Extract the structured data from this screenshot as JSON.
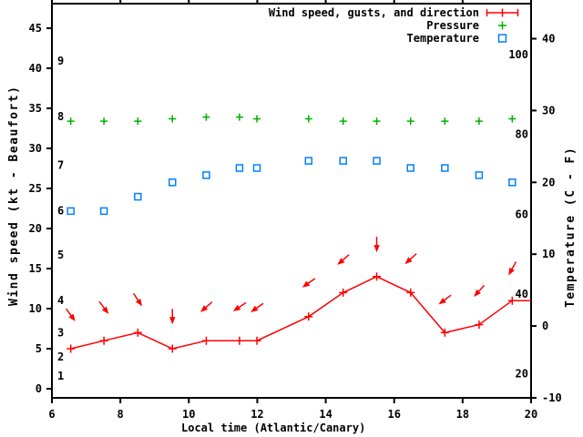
{
  "legend": {
    "items": [
      {
        "label": "Wind speed, gusts, and direction",
        "series": "wind"
      },
      {
        "label": "Pressure",
        "series": "pressure"
      },
      {
        "label": "Temperature",
        "series": "temperature"
      }
    ]
  },
  "colors": {
    "wind": "#ff0000",
    "pressure": "#00b000",
    "temperature": "#0080ff",
    "axis": "#000000",
    "background": "#ffffff"
  },
  "chart_data": {
    "type": "line",
    "title": "",
    "xlabel": "Local time (Atlantic/Canary)",
    "ylabel": "Wind speed (kt - Beaufort)",
    "y2label": "Temperature (C - F)",
    "x_range": [
      6,
      20
    ],
    "x_ticks": [
      6,
      8,
      10,
      12,
      14,
      16,
      18,
      20
    ],
    "y_left_ticks_kt": [
      0,
      5,
      10,
      15,
      20,
      25,
      30,
      35,
      40,
      45
    ],
    "y_right_ticks_c": [
      -10,
      0,
      10,
      20,
      30,
      40
    ],
    "fahrenheit_inner_labels": [
      20,
      40,
      60,
      80,
      100
    ],
    "beaufort_inner_labels": [
      {
        "label": "1",
        "kt": 1.6
      },
      {
        "label": "2",
        "kt": 4
      },
      {
        "label": "3",
        "kt": 7
      },
      {
        "label": "4",
        "kt": 11
      },
      {
        "label": "5",
        "kt": 16.7
      },
      {
        "label": "6",
        "kt": 22.2
      },
      {
        "label": "7",
        "kt": 27.9
      },
      {
        "label": "8",
        "kt": 34
      },
      {
        "label": "9",
        "kt": 40.9
      }
    ],
    "grid": false,
    "legend_position": "top-right-inside",
    "x": [
      6.55,
      7.52,
      8.51,
      9.52,
      10.51,
      11.48,
      11.99,
      13.5,
      14.51,
      15.49,
      16.48,
      17.48,
      18.48,
      19.45
    ],
    "series": [
      {
        "name": "Wind speed (kt)",
        "color_key": "wind",
        "values": [
          5,
          6,
          7,
          5,
          6,
          6,
          6,
          9,
          12,
          14,
          12,
          7,
          8,
          11
        ]
      },
      {
        "name": "Wind gusts (kt, arrow centers)",
        "color_key": "wind",
        "values": [
          9.2,
          10.1,
          11.1,
          9,
          10.2,
          10.2,
          10.1,
          13.2,
          16.1,
          18,
          16.2,
          11.1,
          12.2,
          15
        ]
      },
      {
        "name": "Wind direction arrows (degrees clockwise from screen-east, pointing)",
        "color_key": "wind",
        "values": [
          54,
          53,
          56,
          90,
          139,
          146,
          145,
          145,
          139,
          90,
          138,
          143,
          132,
          119
        ]
      },
      {
        "name": "Pressure (plotted height in left-axis kt units, numeric scale not shown)",
        "color_key": "pressure",
        "values": [
          33.4,
          33.4,
          33.4,
          33.7,
          33.9,
          33.9,
          33.7,
          33.7,
          33.4,
          33.4,
          33.4,
          33.4,
          33.4,
          33.7
        ]
      },
      {
        "name": "Temperature (C)",
        "color_key": "temperature",
        "values": [
          16,
          16,
          18,
          20,
          21,
          22,
          22,
          23,
          23,
          23,
          22,
          22,
          21,
          20
        ]
      }
    ],
    "wind_line_extension": {
      "x": 20.0,
      "kt": 11
    }
  }
}
